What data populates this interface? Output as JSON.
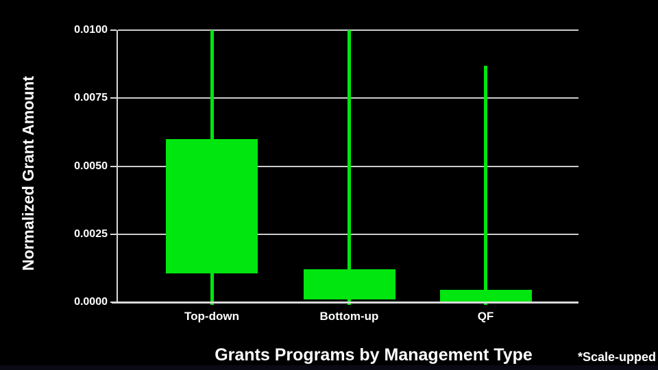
{
  "chart_data": {
    "type": "boxplot",
    "title": "",
    "xlabel": "Grants Programs by Management Type",
    "ylabel": "Normalized Grant Amount",
    "annotation": "*Scale-upped",
    "categories": [
      "Top-down",
      "Bottom-up",
      "QF"
    ],
    "ytick_values": [
      0.0,
      0.0025,
      0.005,
      0.0075,
      0.01
    ],
    "ytick_labels": [
      "0.0000",
      "0.0025",
      "0.0050",
      "0.0075",
      "0.0100"
    ],
    "ylim": [
      0.0,
      0.01
    ],
    "grid": true,
    "legend": null,
    "series": [
      {
        "name": "Top-down",
        "q1": 0.00105,
        "q3": 0.006,
        "median": null,
        "whisker_low": 0.0,
        "whisker_high": 0.01,
        "whisker_high_clipped": true
      },
      {
        "name": "Bottom-up",
        "q1": 0.0001,
        "q3": 0.0012,
        "median": null,
        "whisker_low": 0.0,
        "whisker_high": 0.01,
        "whisker_high_clipped": true
      },
      {
        "name": "QF",
        "q1": 0.0,
        "q3": 0.00045,
        "median": null,
        "whisker_low": 0.0,
        "whisker_high": 0.0087,
        "whisker_high_clipped": false
      }
    ],
    "colors": {
      "box_fill": "#00e60e",
      "whisker": "#00e60e",
      "background": "#000000",
      "gridline": "#cccccc",
      "spine": "#d9d9d9",
      "text": "#ffffff"
    }
  }
}
